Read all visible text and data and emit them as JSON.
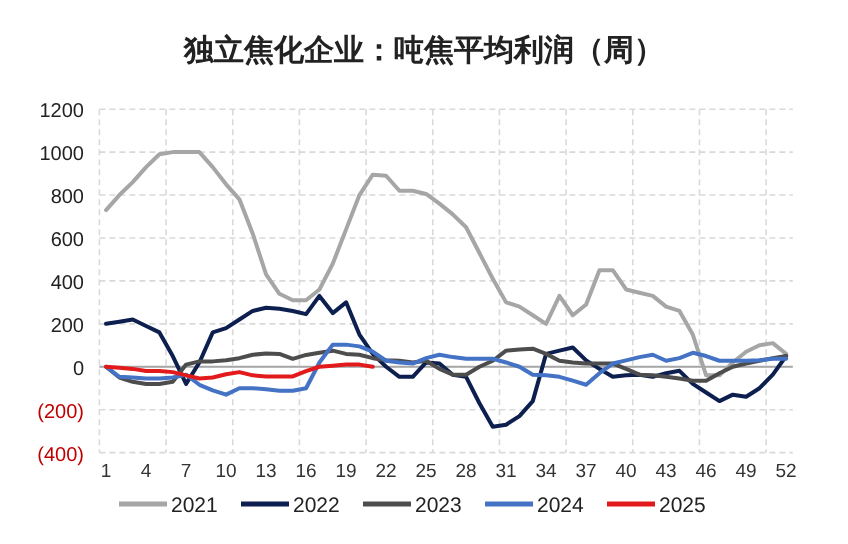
{
  "chart_data": {
    "type": "line",
    "title": "独立焦化企业：吨焦平均利润（周）",
    "categories": [
      "1",
      null,
      null,
      "4",
      null,
      null,
      "7",
      null,
      null,
      "10",
      null,
      null,
      "13",
      null,
      null,
      "16",
      null,
      null,
      "19",
      null,
      null,
      "22",
      null,
      null,
      "25",
      null,
      null,
      "28",
      null,
      null,
      "31",
      null,
      null,
      "34",
      null,
      null,
      "37",
      null,
      null,
      "40",
      null,
      null,
      "43",
      null,
      null,
      "46",
      null,
      null,
      "49",
      null,
      null,
      "52"
    ],
    "series": [
      {
        "name": "2021",
        "color": "#a6a6a6",
        "values": [
          730,
          800,
          860,
          930,
          990,
          1000,
          1000,
          1000,
          930,
          850,
          780,
          620,
          430,
          340,
          310,
          310,
          360,
          480,
          640,
          800,
          895,
          890,
          820,
          820,
          805,
          760,
          710,
          650,
          530,
          410,
          300,
          280,
          240,
          200,
          330,
          240,
          290,
          450,
          450,
          360,
          345,
          330,
          280,
          260,
          150,
          -40,
          -40,
          20,
          70,
          100,
          110,
          60
        ]
      },
      {
        "name": "2022",
        "color": "#0d1f4f",
        "values": [
          200,
          210,
          220,
          190,
          160,
          50,
          -80,
          20,
          160,
          180,
          220,
          260,
          275,
          270,
          260,
          245,
          330,
          250,
          300,
          150,
          60,
          0,
          -47,
          -47,
          20,
          15,
          -37,
          -47,
          -170,
          -280,
          -270,
          -230,
          -160,
          60,
          75,
          90,
          30,
          -10,
          -47,
          -40,
          -37,
          -47,
          -30,
          -19,
          -80,
          -120,
          -160,
          -130,
          -140,
          -100,
          -37,
          50
        ]
      },
      {
        "name": "2023",
        "color": "#4d4d4d",
        "values": [
          0,
          -50,
          -70,
          -80,
          -80,
          -70,
          10,
          25,
          25,
          30,
          40,
          56,
          62,
          60,
          37,
          55,
          65,
          75,
          60,
          56,
          40,
          30,
          28,
          20,
          28,
          -10,
          -37,
          -37,
          0,
          28,
          75,
          80,
          84,
          60,
          28,
          20,
          15,
          15,
          15,
          -10,
          -37,
          -40,
          -47,
          -55,
          -65,
          -65,
          -30,
          0,
          15,
          28,
          40,
          50
        ]
      },
      {
        "name": "2024",
        "color": "#4472c4",
        "values": [
          0,
          -47,
          -50,
          -55,
          -55,
          -50,
          -37,
          -84,
          -110,
          -130,
          -100,
          -100,
          -105,
          -112,
          -112,
          -100,
          20,
          103,
          103,
          95,
          70,
          28,
          20,
          15,
          40,
          56,
          45,
          37,
          37,
          37,
          20,
          0,
          -37,
          -40,
          -47,
          -65,
          -84,
          -30,
          15,
          30,
          45,
          56,
          28,
          40,
          65,
          50,
          28,
          28,
          28,
          30,
          37,
          37
        ]
      },
      {
        "name": "2025",
        "color": "#e31a1c",
        "values": [
          0,
          -5,
          -10,
          -20,
          -20,
          -25,
          -40,
          -55,
          -50,
          -35,
          -25,
          -40,
          -45,
          -45,
          -45,
          -20,
          0,
          5,
          10,
          10,
          0,
          null,
          null,
          null,
          null,
          null,
          null,
          null,
          null,
          null,
          null,
          null,
          null,
          null,
          null,
          null,
          null,
          null,
          null,
          null,
          null,
          null,
          null,
          null,
          null,
          null,
          null,
          null,
          null,
          null,
          null,
          null
        ]
      }
    ],
    "ylim": [
      -400,
      1200
    ],
    "yticks": [
      1200,
      1000,
      800,
      600,
      400,
      200,
      0,
      {
        "value": -200,
        "label": "(200)"
      },
      {
        "value": -400,
        "label": "(400)"
      }
    ],
    "grid": true,
    "legend": "bottom",
    "marker": "none",
    "line_style": "solid"
  }
}
